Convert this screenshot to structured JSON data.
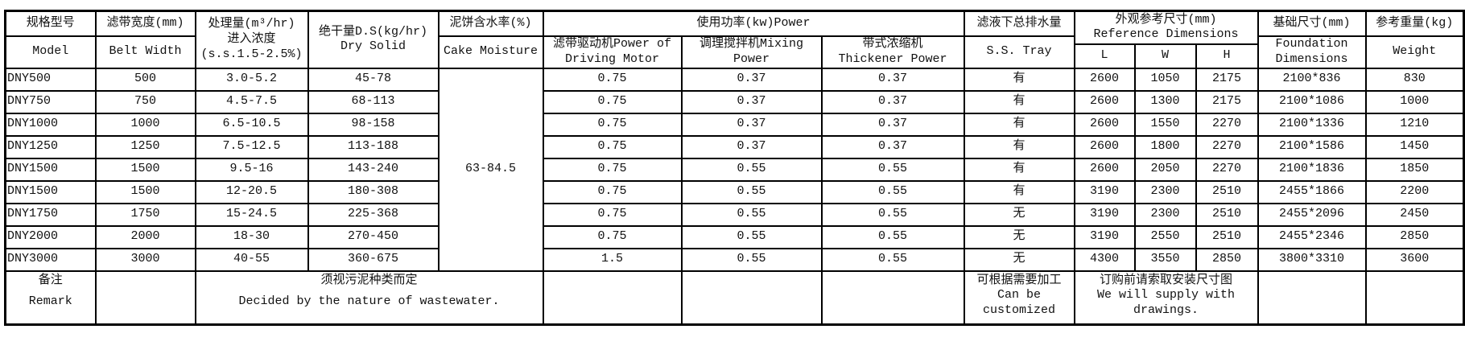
{
  "header": {
    "model_cn": "规格型号",
    "model_en": "Model",
    "belt_cn": "滤带宽度(mm)",
    "belt_en": "Belt Width",
    "capacity_cn": "处理量(m³/hr)",
    "capacity_cn2": "进入浓度",
    "capacity_en": "(s.s.1.5-2.5%)",
    "dry_cn": "绝干量D.S(kg/hr)",
    "dry_en": "Dry Solid",
    "moisture_cn": "泥饼含水率(%)",
    "moisture_en": "Cake Moisture",
    "power": "使用功率(kw)Power",
    "power_drive": "滤带驱动机Power of Driving Motor",
    "power_mixing": "调理搅拌机Mixing Power",
    "power_thick_cn": "带式浓缩机",
    "power_thick_en": "Thickener Power",
    "tray_cn": "滤液下总排水量",
    "tray_en": "S.S. Tray",
    "ref_cn": "外观参考尺寸(mm)",
    "ref_en": "Reference Dimensions",
    "L": "L",
    "W": "W",
    "H": "H",
    "found_cn": "基础尺寸(mm)",
    "found_en": "Foundation Dimensions",
    "weight_cn": "参考重量(kg)",
    "weight_en": "Weight"
  },
  "cake_moisture_value": "63-84.5",
  "rows": [
    {
      "model": "DNY500",
      "belt": "500",
      "capacity": "3.0-5.2",
      "dry": "45-78",
      "drive": "0.75",
      "mixing": "0.37",
      "thick": "0.37",
      "tray": "有",
      "L": "2600",
      "W": "1050",
      "H": "2175",
      "found": "2100*836",
      "weight": "830"
    },
    {
      "model": "DNY750",
      "belt": "750",
      "capacity": "4.5-7.5",
      "dry": "68-113",
      "drive": "0.75",
      "mixing": "0.37",
      "thick": "0.37",
      "tray": "有",
      "L": "2600",
      "W": "1300",
      "H": "2175",
      "found": "2100*1086",
      "weight": "1000"
    },
    {
      "model": "DNY1000",
      "belt": "1000",
      "capacity": "6.5-10.5",
      "dry": "98-158",
      "drive": "0.75",
      "mixing": "0.37",
      "thick": "0.37",
      "tray": "有",
      "L": "2600",
      "W": "1550",
      "H": "2270",
      "found": "2100*1336",
      "weight": "1210"
    },
    {
      "model": "DNY1250",
      "belt": "1250",
      "capacity": "7.5-12.5",
      "dry": "113-188",
      "drive": "0.75",
      "mixing": "0.37",
      "thick": "0.37",
      "tray": "有",
      "L": "2600",
      "W": "1800",
      "H": "2270",
      "found": "2100*1586",
      "weight": "1450"
    },
    {
      "model": "DNY1500",
      "belt": "1500",
      "capacity": "9.5-16",
      "dry": "143-240",
      "drive": "0.75",
      "mixing": "0.55",
      "thick": "0.55",
      "tray": "有",
      "L": "2600",
      "W": "2050",
      "H": "2270",
      "found": "2100*1836",
      "weight": "1850"
    },
    {
      "model": "DNY1500",
      "belt": "1500",
      "capacity": "12-20.5",
      "dry": "180-308",
      "drive": "0.75",
      "mixing": "0.55",
      "thick": "0.55",
      "tray": "有",
      "L": "3190",
      "W": "2300",
      "H": "2510",
      "found": "2455*1866",
      "weight": "2200"
    },
    {
      "model": "DNY1750",
      "belt": "1750",
      "capacity": "15-24.5",
      "dry": "225-368",
      "drive": "0.75",
      "mixing": "0.55",
      "thick": "0.55",
      "tray": "无",
      "L": "3190",
      "W": "2300",
      "H": "2510",
      "found": "2455*2096",
      "weight": "2450"
    },
    {
      "model": "DNY2000",
      "belt": "2000",
      "capacity": "18-30",
      "dry": "270-450",
      "drive": "0.75",
      "mixing": "0.55",
      "thick": "0.55",
      "tray": "无",
      "L": "3190",
      "W": "2550",
      "H": "2510",
      "found": "2455*2346",
      "weight": "2850"
    },
    {
      "model": "DNY3000",
      "belt": "3000",
      "capacity": "40-55",
      "dry": "360-675",
      "drive": "1.5",
      "mixing": "0.55",
      "thick": "0.55",
      "tray": "无",
      "L": "4300",
      "W": "3550",
      "H": "2850",
      "found": "3800*3310",
      "weight": "3600"
    }
  ],
  "remark": {
    "label_cn": "备注",
    "label_en": "Remark",
    "sludge_cn": "须视污泥种类而定",
    "sludge_en": "Decided by the nature of wastewater.",
    "custom_cn": "可根据需要加工",
    "custom_en": "Can be customized",
    "drawing_cn": "订购前请索取安装尺寸图",
    "drawing_en": "We will supply with drawings."
  }
}
